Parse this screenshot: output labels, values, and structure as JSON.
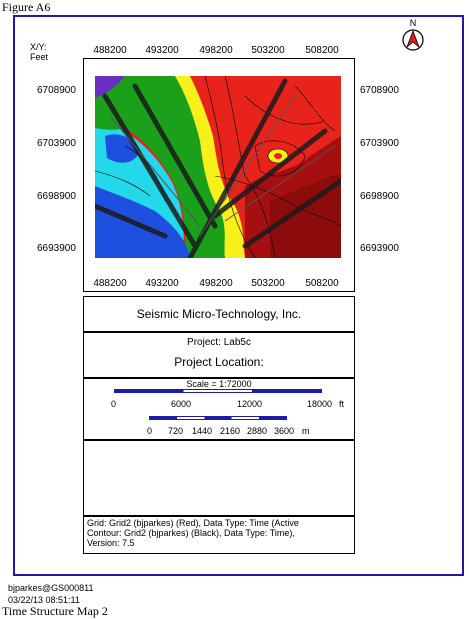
{
  "figure_label": "Figure A6",
  "xy_label": "X/Y:",
  "units_label": "Feet",
  "x_ticks": [
    "488200",
    "493200",
    "498200",
    "503200",
    "508200"
  ],
  "y_ticks": [
    "6708900",
    "6703900",
    "6698900",
    "6693900"
  ],
  "company": "Seismic Micro-Technology, Inc.",
  "project": "Project: Lab5c",
  "project_location": "Project Location:",
  "scale": {
    "label": "Scale = 1:72000",
    "feet_ticks": [
      "0",
      "6000",
      "12000",
      "18000"
    ],
    "feet_unit": "ft",
    "meter_ticks": [
      "0",
      "720",
      "1440",
      "2160",
      "2880",
      "3600"
    ],
    "meter_unit": "m"
  },
  "footer_lines": [
    "Grid: Grid2 (bjparkes) (Red), Data Type: Time (Active",
    "Contour: Grid2 (bjparkes) (Black), Data Type: Time),",
    "Version: 7.5"
  ],
  "user": "bjparkes@GS000811",
  "datetime": "03/22/13  08:51:11",
  "title": "Time Structure Map 2",
  "north_label": "N",
  "colors": {
    "frame": "#1d1aa8",
    "red": "#e8231b",
    "dark_red": "#a50f0f",
    "yellow": "#f8f01a",
    "green": "#1aa01a",
    "cyan": "#22d8ea",
    "blue": "#1e50e0",
    "purple": "#6a2fbf"
  }
}
